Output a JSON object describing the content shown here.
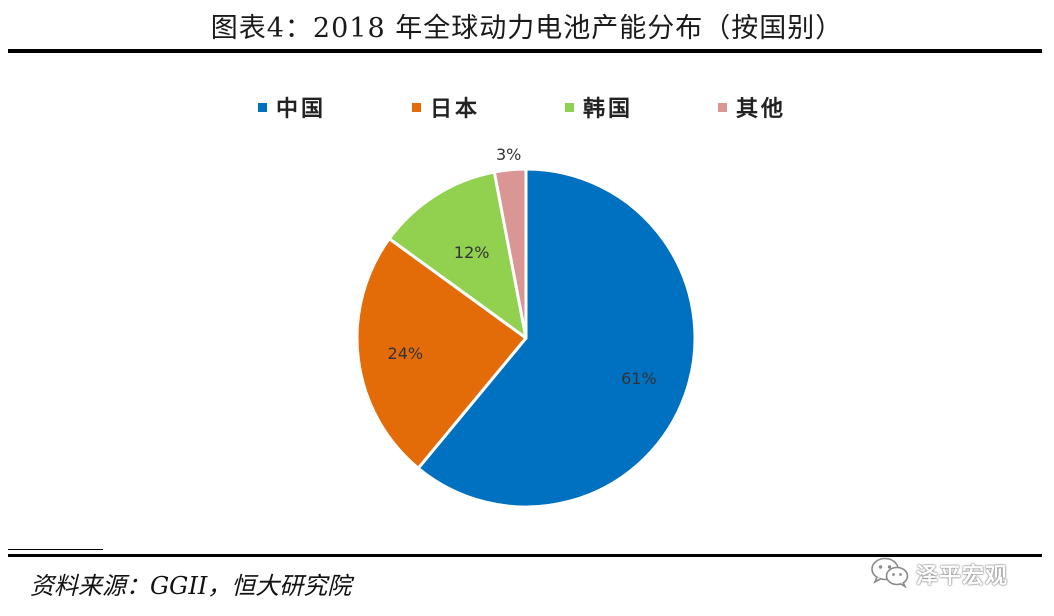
{
  "title": "图表4：2018 年全球动力电池产能分布（按国别）",
  "source": "资料来源：GGII，恒大研究院",
  "brand": {
    "name": "泽平宏观",
    "icon": "wechat-icon"
  },
  "chart_data": {
    "type": "pie",
    "title": "图表4：2018 年全球动力电池产能分布（按国别）",
    "categories": [
      "中国",
      "日本",
      "韩国",
      "其他"
    ],
    "values": [
      61,
      24,
      12,
      3
    ],
    "labels": [
      "61%",
      "24%",
      "12%",
      "3%"
    ],
    "colors": [
      "#0070C0",
      "#E36C09",
      "#92D050",
      "#D99694"
    ],
    "legend": {
      "position": "top",
      "items": [
        "中国",
        "日本",
        "韩国",
        "其他"
      ]
    },
    "start_angle": "12 o'clock",
    "direction": "clockwise"
  }
}
